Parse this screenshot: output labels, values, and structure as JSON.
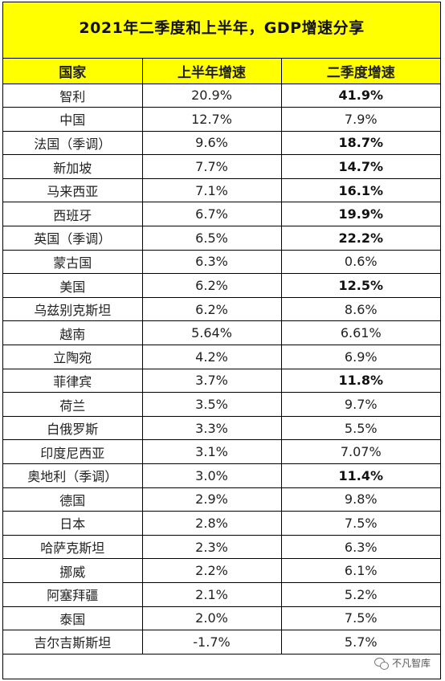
{
  "title": "2021年二季度和上半年，GDP增速分享",
  "headers": [
    "国家",
    "上半年增速",
    "二季度增速"
  ],
  "rows": [
    {
      "country": "智利",
      "h1": "20.9%",
      "q2": "41.9%",
      "q2_bold": true
    },
    {
      "country": "中国",
      "h1": "12.7%",
      "q2": "7.9%",
      "q2_bold": false
    },
    {
      "country": "法国（季调）",
      "h1": "9.6%",
      "q2": "18.7%",
      "q2_bold": true
    },
    {
      "country": "新加坡",
      "h1": "7.7%",
      "q2": "14.7%",
      "q2_bold": true
    },
    {
      "country": "马来西亚",
      "h1": "7.1%",
      "q2": "16.1%",
      "q2_bold": true
    },
    {
      "country": "西班牙",
      "h1": "6.7%",
      "q2": "19.9%",
      "q2_bold": true
    },
    {
      "country": "英国（季调）",
      "h1": "6.5%",
      "q2": "22.2%",
      "q2_bold": true
    },
    {
      "country": "蒙古国",
      "h1": "6.3%",
      "q2": "0.6%",
      "q2_bold": false
    },
    {
      "country": "美国",
      "h1": "6.2%",
      "q2": "12.5%",
      "q2_bold": true
    },
    {
      "country": "乌兹别克斯坦",
      "h1": "6.2%",
      "q2": "8.6%",
      "q2_bold": false
    },
    {
      "country": "越南",
      "h1": "5.64%",
      "q2": "6.61%",
      "q2_bold": false
    },
    {
      "country": "立陶宛",
      "h1": "4.2%",
      "q2": "6.9%",
      "q2_bold": false
    },
    {
      "country": "菲律宾",
      "h1": "3.7%",
      "q2": "11.8%",
      "q2_bold": true
    },
    {
      "country": "荷兰",
      "h1": "3.5%",
      "q2": "9.7%",
      "q2_bold": false
    },
    {
      "country": "白俄罗斯",
      "h1": "3.3%",
      "q2": "5.5%",
      "q2_bold": false
    },
    {
      "country": "印度尼西亚",
      "h1": "3.1%",
      "q2": "7.07%",
      "q2_bold": false
    },
    {
      "country": "奥地利（季调）",
      "h1": "3.0%",
      "q2": "11.4%",
      "q2_bold": true
    },
    {
      "country": "德国",
      "h1": "2.9%",
      "q2": "9.8%",
      "q2_bold": false
    },
    {
      "country": "日本",
      "h1": "2.8%",
      "q2": "7.5%",
      "q2_bold": false
    },
    {
      "country": "哈萨克斯坦",
      "h1": "2.3%",
      "q2": "6.3%",
      "q2_bold": false
    },
    {
      "country": "挪威",
      "h1": "2.2%",
      "q2": "6.1%",
      "q2_bold": false
    },
    {
      "country": "阿塞拜疆",
      "h1": "2.1%",
      "q2": "5.2%",
      "q2_bold": false
    },
    {
      "country": "泰国",
      "h1": "2.0%",
      "q2": "7.5%",
      "q2_bold": false
    },
    {
      "country": "吉尔吉斯斯坦",
      "h1": "-1.7%",
      "q2": "5.7%",
      "q2_bold": false
    }
  ],
  "watermark": {
    "text": "不凡智库",
    "icon": "wechat-icon"
  },
  "colors": {
    "header_bg": "#ffff00",
    "border": "#000000"
  }
}
